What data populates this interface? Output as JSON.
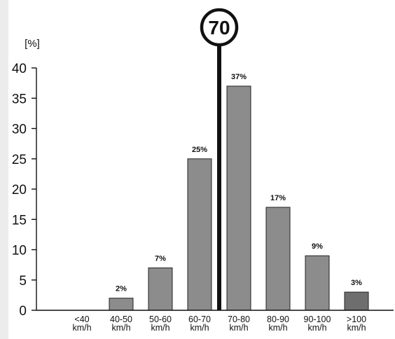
{
  "chart_data": {
    "type": "bar",
    "ylabel": "[%]",
    "ylim": [
      0,
      40
    ],
    "yticks": [
      0,
      5,
      10,
      15,
      20,
      25,
      30,
      35,
      40
    ],
    "categories": [
      [
        "<40",
        "km/h"
      ],
      [
        "40-50",
        "km/h"
      ],
      [
        "50-60",
        "km/h"
      ],
      [
        "60-70",
        "km/h"
      ],
      [
        "70-80",
        "km/h"
      ],
      [
        "80-90",
        "km/h"
      ],
      [
        "90-100",
        "km/h"
      ],
      [
        ">100",
        "km/h"
      ]
    ],
    "values": [
      0,
      2,
      7,
      25,
      37,
      17,
      9,
      3
    ],
    "data_labels": [
      "",
      "2%",
      "7%",
      "25%",
      "37%",
      "17%",
      "9%",
      "3%"
    ],
    "speed_limit_sign": "70",
    "colors": {
      "bar": "#8c8c8c",
      "bar_last": "#6e6e6e",
      "axis": "#111111",
      "limit_line": "#111111",
      "background": "#ececec",
      "plot_background": "#ffffff"
    }
  }
}
